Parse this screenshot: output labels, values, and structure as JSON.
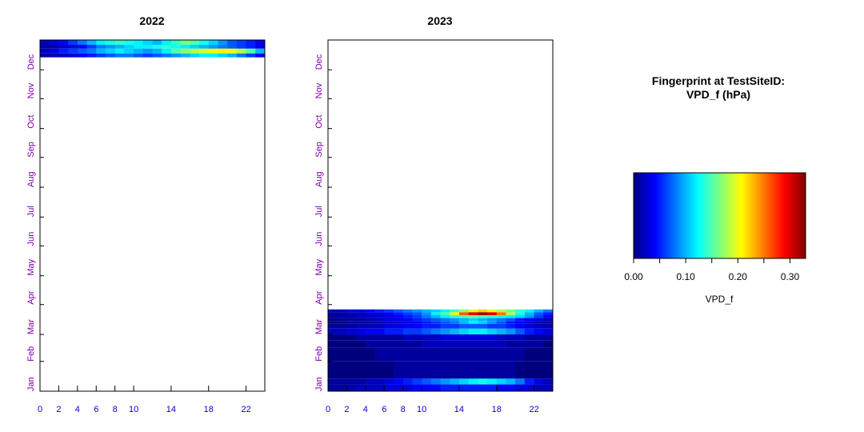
{
  "legend": {
    "title_line1": "Fingerprint at TestSiteID:",
    "title_line2": "VPD_f (hPa)",
    "axis_label": "VPD_f",
    "tick_labels": [
      "0.00",
      "0.10",
      "0.20",
      "0.30"
    ],
    "tick_values": [
      0.0,
      0.1,
      0.2,
      0.3
    ],
    "range": [
      0.0,
      0.33
    ],
    "colormap": [
      "#00007f",
      "#0000ff",
      "#007fff",
      "#00ffff",
      "#7fff7f",
      "#ffff00",
      "#ff7f00",
      "#ff0000",
      "#7f0000"
    ]
  },
  "chart_data": [
    {
      "type": "heatmap",
      "title": "2022",
      "xlabel": "",
      "ylabel": "",
      "x_ticks": [
        0,
        2,
        4,
        6,
        8,
        10,
        14,
        18,
        22
      ],
      "x_range": [
        0,
        24
      ],
      "y_ticks": [
        "Jan",
        "Feb",
        "Mar",
        "Apr",
        "May",
        "Jun",
        "Jul",
        "Aug",
        "Sep",
        "Oct",
        "Nov",
        "Dec"
      ],
      "y_range_days": [
        1,
        366
      ],
      "data_coverage": "late Dec 2022 only",
      "bands": [
        {
          "day_start": 361,
          "day_end": 366,
          "values": [
            0.02,
            0.03,
            0.04,
            0.06,
            0.08,
            0.1,
            0.12,
            0.13,
            0.14,
            0.13,
            0.12,
            0.11,
            0.1,
            0.12,
            0.14,
            0.16,
            0.15,
            0.13,
            0.11,
            0.09,
            0.07,
            0.06,
            0.05,
            0.04
          ]
        },
        {
          "day_start": 357,
          "day_end": 361,
          "values": [
            0.01,
            0.01,
            0.02,
            0.03,
            0.04,
            0.06,
            0.08,
            0.09,
            0.1,
            0.11,
            0.12,
            0.12,
            0.13,
            0.14,
            0.13,
            0.12,
            0.11,
            0.1,
            0.09,
            0.08,
            0.07,
            0.06,
            0.05,
            0.03
          ]
        },
        {
          "day_start": 352,
          "day_end": 357,
          "values": [
            0.02,
            0.03,
            0.05,
            0.06,
            0.07,
            0.08,
            0.1,
            0.11,
            0.12,
            0.11,
            0.1,
            0.09,
            0.1,
            0.12,
            0.15,
            0.17,
            0.18,
            0.19,
            0.2,
            0.21,
            0.2,
            0.18,
            0.15,
            0.1
          ]
        },
        {
          "day_start": 348,
          "day_end": 352,
          "values": [
            0.01,
            0.02,
            0.02,
            0.03,
            0.04,
            0.05,
            0.06,
            0.07,
            0.08,
            0.08,
            0.07,
            0.06,
            0.07,
            0.08,
            0.09,
            0.1,
            0.11,
            0.12,
            0.12,
            0.11,
            0.1,
            0.08,
            0.06,
            0.04
          ]
        }
      ]
    },
    {
      "type": "heatmap",
      "title": "2023",
      "xlabel": "",
      "ylabel": "",
      "x_ticks": [
        0,
        2,
        4,
        6,
        8,
        10,
        14,
        18,
        22
      ],
      "x_range": [
        0,
        24
      ],
      "y_ticks": [
        "Jan",
        "Feb",
        "Mar",
        "Apr",
        "May",
        "Jun",
        "Jul",
        "Aug",
        "Sep",
        "Oct",
        "Nov",
        "Dec"
      ],
      "y_range_days": [
        1,
        366
      ],
      "data_coverage": "Jan to late Mar 2023",
      "bands": [
        {
          "day_start": 83,
          "day_end": 86,
          "values": [
            0.02,
            0.02,
            0.03,
            0.03,
            0.04,
            0.05,
            0.06,
            0.07,
            0.08,
            0.09,
            0.1,
            0.11,
            0.12,
            0.14,
            0.17,
            0.2,
            0.22,
            0.2,
            0.18,
            0.16,
            0.14,
            0.12,
            0.1,
            0.08
          ]
        },
        {
          "day_start": 80,
          "day_end": 83,
          "values": [
            0.01,
            0.01,
            0.02,
            0.02,
            0.03,
            0.03,
            0.04,
            0.05,
            0.06,
            0.07,
            0.09,
            0.12,
            0.15,
            0.2,
            0.26,
            0.3,
            0.32,
            0.3,
            0.25,
            0.18,
            0.13,
            0.1,
            0.07,
            0.05
          ]
        },
        {
          "day_start": 77,
          "day_end": 80,
          "values": [
            0.01,
            0.01,
            0.01,
            0.02,
            0.02,
            0.03,
            0.03,
            0.04,
            0.05,
            0.06,
            0.08,
            0.1,
            0.12,
            0.14,
            0.15,
            0.16,
            0.15,
            0.14,
            0.13,
            0.12,
            0.11,
            0.09,
            0.06,
            0.04
          ]
        },
        {
          "day_start": 74,
          "day_end": 77,
          "values": [
            0.0,
            0.01,
            0.01,
            0.01,
            0.02,
            0.02,
            0.03,
            0.03,
            0.04,
            0.05,
            0.06,
            0.07,
            0.08,
            0.09,
            0.1,
            0.11,
            0.1,
            0.09,
            0.08,
            0.07,
            0.05,
            0.04,
            0.03,
            0.02
          ]
        },
        {
          "day_start": 71,
          "day_end": 74,
          "values": [
            0.0,
            0.0,
            0.01,
            0.01,
            0.01,
            0.02,
            0.02,
            0.03,
            0.03,
            0.04,
            0.05,
            0.06,
            0.07,
            0.08,
            0.1,
            0.12,
            0.11,
            0.09,
            0.07,
            0.05,
            0.04,
            0.03,
            0.02,
            0.01
          ]
        },
        {
          "day_start": 66,
          "day_end": 71,
          "values": [
            0.01,
            0.01,
            0.01,
            0.02,
            0.02,
            0.02,
            0.03,
            0.03,
            0.04,
            0.04,
            0.05,
            0.05,
            0.06,
            0.06,
            0.07,
            0.07,
            0.07,
            0.06,
            0.06,
            0.05,
            0.04,
            0.03,
            0.02,
            0.02
          ]
        },
        {
          "day_start": 60,
          "day_end": 66,
          "values": [
            0.02,
            0.02,
            0.03,
            0.03,
            0.04,
            0.04,
            0.05,
            0.05,
            0.06,
            0.06,
            0.07,
            0.08,
            0.09,
            0.1,
            0.11,
            0.12,
            0.12,
            0.11,
            0.1,
            0.09,
            0.07,
            0.05,
            0.04,
            0.03
          ]
        },
        {
          "day_start": 54,
          "day_end": 60,
          "values": [
            0.0,
            0.0,
            0.0,
            0.01,
            0.01,
            0.01,
            0.01,
            0.01,
            0.02,
            0.02,
            0.02,
            0.02,
            0.03,
            0.03,
            0.03,
            0.03,
            0.03,
            0.03,
            0.02,
            0.02,
            0.02,
            0.01,
            0.01,
            0.01
          ]
        },
        {
          "day_start": 46,
          "day_end": 54,
          "values": [
            0.0,
            0.0,
            0.0,
            0.0,
            0.01,
            0.01,
            0.01,
            0.01,
            0.01,
            0.01,
            0.02,
            0.02,
            0.02,
            0.02,
            0.02,
            0.02,
            0.02,
            0.02,
            0.02,
            0.01,
            0.01,
            0.01,
            0.01,
            0.0
          ]
        },
        {
          "day_start": 32,
          "day_end": 46,
          "values": [
            0.0,
            0.0,
            0.0,
            0.0,
            0.0,
            0.01,
            0.01,
            0.01,
            0.01,
            0.01,
            0.01,
            0.01,
            0.01,
            0.01,
            0.01,
            0.01,
            0.01,
            0.01,
            0.01,
            0.01,
            0.01,
            0.0,
            0.0,
            0.0
          ]
        },
        {
          "day_start": 14,
          "day_end": 32,
          "values": [
            0.0,
            0.0,
            0.0,
            0.0,
            0.0,
            0.0,
            0.0,
            0.01,
            0.01,
            0.01,
            0.01,
            0.01,
            0.01,
            0.01,
            0.01,
            0.01,
            0.01,
            0.01,
            0.01,
            0.01,
            0.0,
            0.0,
            0.0,
            0.0
          ]
        },
        {
          "day_start": 8,
          "day_end": 14,
          "values": [
            0.01,
            0.01,
            0.01,
            0.01,
            0.02,
            0.02,
            0.03,
            0.04,
            0.05,
            0.06,
            0.07,
            0.08,
            0.09,
            0.1,
            0.11,
            0.12,
            0.13,
            0.12,
            0.11,
            0.1,
            0.08,
            0.05,
            0.03,
            0.02
          ]
        },
        {
          "day_start": 1,
          "day_end": 8,
          "values": [
            0.01,
            0.01,
            0.01,
            0.02,
            0.02,
            0.02,
            0.03,
            0.03,
            0.03,
            0.04,
            0.04,
            0.04,
            0.05,
            0.05,
            0.05,
            0.05,
            0.05,
            0.05,
            0.04,
            0.04,
            0.03,
            0.03,
            0.02,
            0.02
          ]
        }
      ]
    }
  ]
}
